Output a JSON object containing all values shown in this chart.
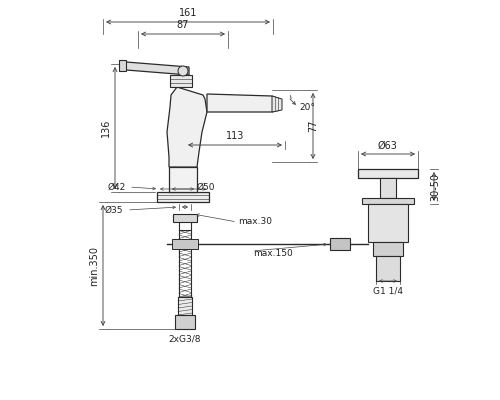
{
  "bg_color": "#ffffff",
  "line_color": "#2a2a2a",
  "annotations": {
    "dim_161": "161",
    "dim_87": "87",
    "dim_136": "136",
    "dim_113": "113",
    "dim_77": "77",
    "dim_20deg": "20°",
    "dim_42": "Ø42",
    "dim_50": "Ø50",
    "dim_35": "Ø35",
    "dim_63": "Ø63",
    "dim_max30": "max.30",
    "dim_max150": "max.150",
    "dim_min350": "min.350",
    "dim_3050": "30-50",
    "dim_2xg38": "2xG3/8",
    "dim_g114": "G1 1/4"
  },
  "figsize": [
    5.0,
    4.0
  ],
  "dpi": 100
}
